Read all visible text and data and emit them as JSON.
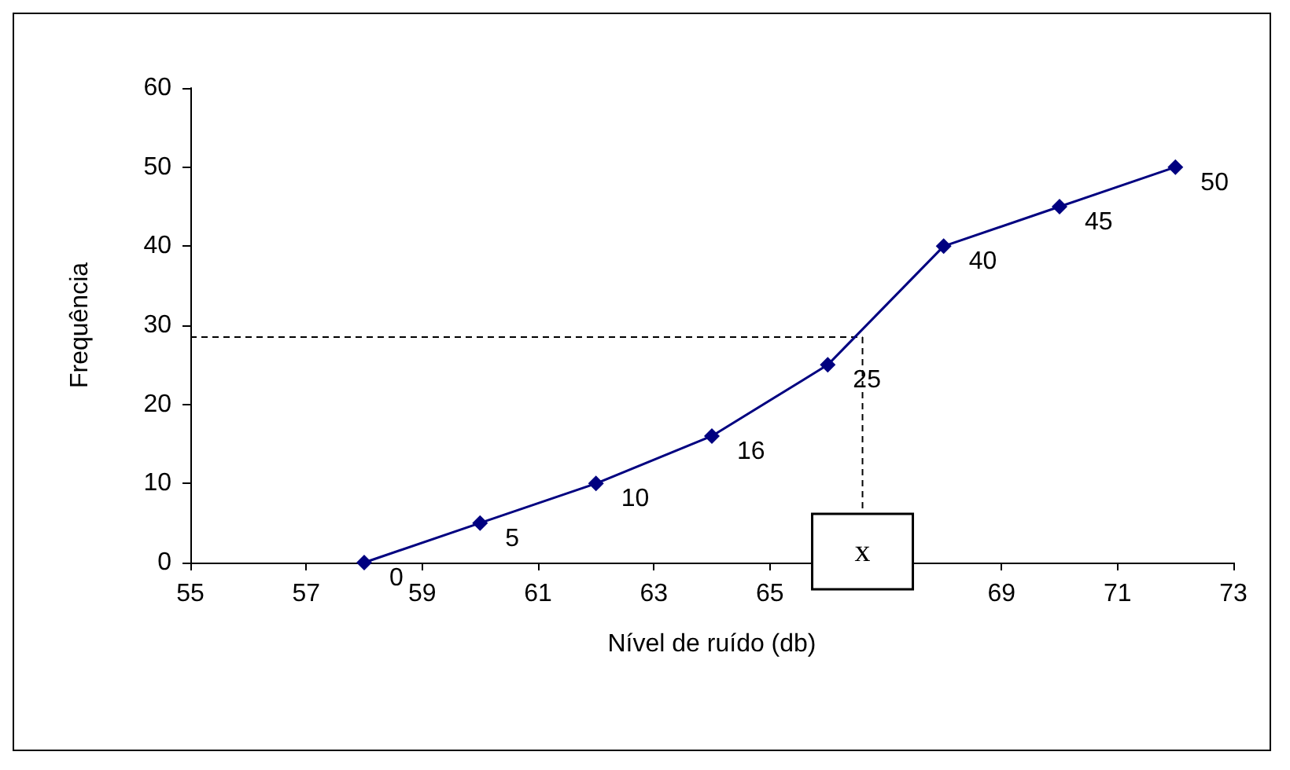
{
  "chart_data": {
    "type": "line",
    "xlabel": "Nível de ruído (db)",
    "ylabel": "Frequência",
    "x": [
      58,
      60,
      62,
      64,
      66,
      68,
      70,
      72
    ],
    "series": [
      {
        "color": "#000080",
        "values": [
          0,
          5,
          10,
          16,
          25,
          40,
          45,
          50
        ]
      }
    ],
    "xlim": [
      55,
      73
    ],
    "xticks": [
      55,
      57,
      59,
      61,
      63,
      65,
      69,
      71,
      73
    ],
    "ylim": [
      0,
      60
    ],
    "yticks": [
      0,
      10,
      20,
      30,
      40,
      50,
      60
    ],
    "grid": false,
    "marker": "diamond",
    "line_style": "solid",
    "data_labels": true,
    "annotations": [
      {
        "text": "x",
        "x": 66.6,
        "y": 28.5
      }
    ]
  }
}
